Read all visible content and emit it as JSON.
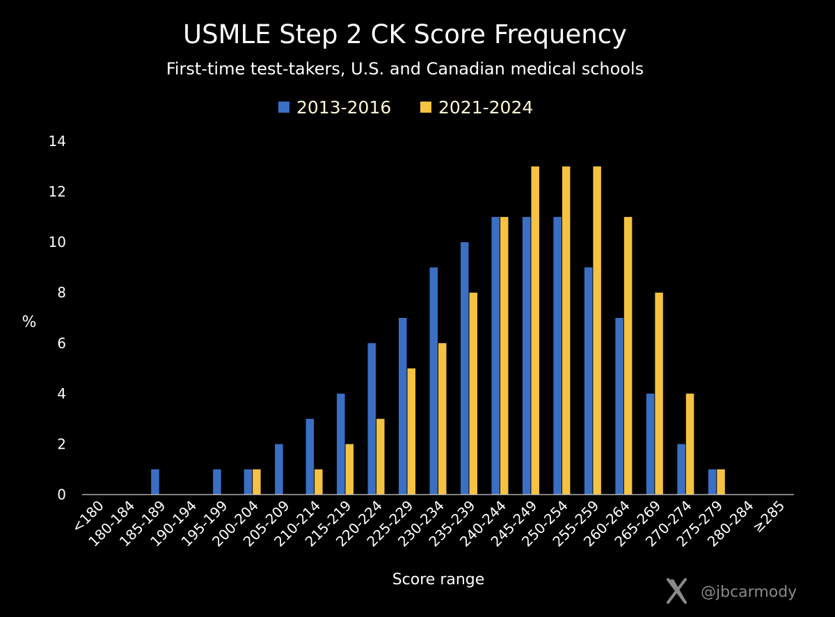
{
  "chart_data": {
    "type": "bar",
    "title": "USMLE Step 2 CK Score Frequency",
    "subtitle": "First-time test-takers, U.S. and Canadian medical schools",
    "xlabel": "Score range",
    "ylabel": "%",
    "ylim": [
      0,
      14
    ],
    "yticks": [
      "0",
      "2",
      "4",
      "6",
      "8",
      "10",
      "12",
      "14"
    ],
    "grid": false,
    "legend_position": "top-center",
    "categories": [
      "<180",
      "180-184",
      "185-189",
      "190-194",
      "195-199",
      "200-204",
      "205-209",
      "210-214",
      "215-219",
      "220-224",
      "225-229",
      "230-234",
      "235-239",
      "240-244",
      "245-249",
      "250-254",
      "255-259",
      "260-264",
      "265-269",
      "270-274",
      "275-279",
      "280-284",
      "≥285"
    ],
    "series": [
      {
        "name": "2013-2016",
        "color": "#3a6fc4",
        "values": [
          0,
          0,
          1,
          0,
          1,
          1,
          2,
          3,
          4,
          6,
          7,
          9,
          10,
          11,
          11,
          11,
          9,
          7,
          4,
          2,
          1,
          0,
          0
        ]
      },
      {
        "name": "2021-2024",
        "color": "#f5c242",
        "values": [
          0,
          0,
          0,
          0,
          0,
          1,
          0,
          1,
          2,
          3,
          5,
          6,
          8,
          11,
          13,
          13,
          13,
          11,
          8,
          4,
          1,
          0,
          0
        ]
      }
    ]
  },
  "credit": {
    "icon": "x-logo-icon",
    "handle": "@jbcarmody"
  }
}
